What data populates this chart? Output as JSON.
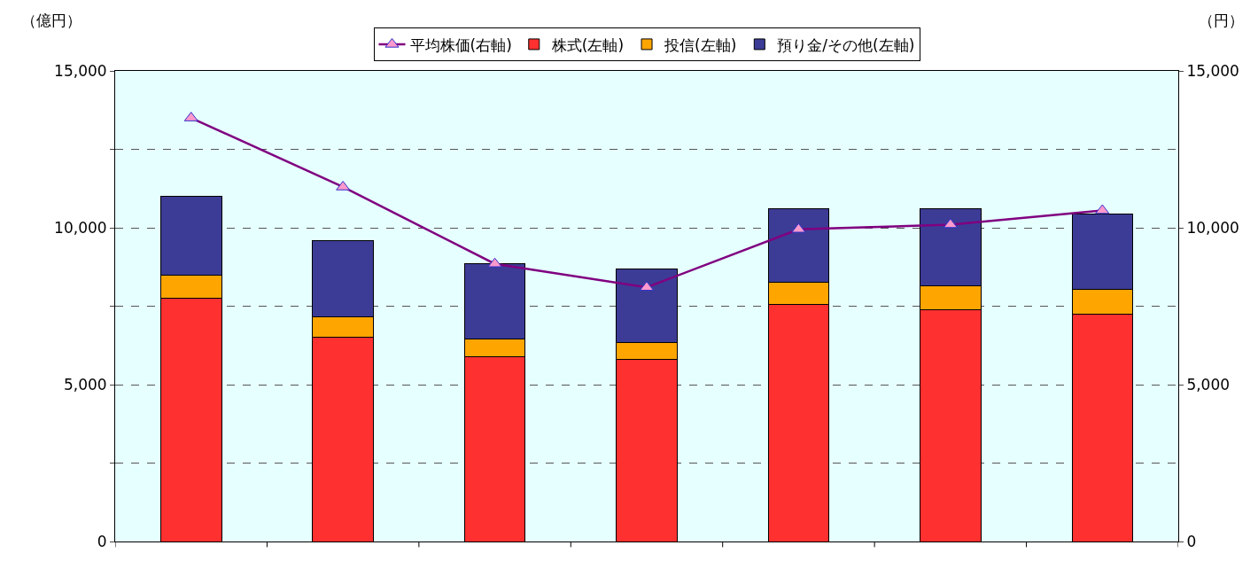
{
  "chart_data": {
    "type": "bar",
    "stacked": true,
    "ylabel": "（億円）",
    "y2label": "（円）",
    "categories": [
      null,
      null,
      null,
      null,
      null,
      null,
      null
    ],
    "series": [
      {
        "name": "株式(左軸)",
        "color": "#ff3030",
        "values": [
          7750,
          6500,
          5900,
          5800,
          7550,
          7400,
          7250
        ]
      },
      {
        "name": "投信(左軸)",
        "color": "#ffa500",
        "values": [
          750,
          650,
          550,
          550,
          700,
          750,
          800
        ]
      },
      {
        "name": "預り金/その他(左軸)",
        "color": "#3c3c96",
        "values": [
          2500,
          2450,
          2400,
          2350,
          2350,
          2450,
          2400
        ]
      },
      {
        "name": "平均株価(右軸)",
        "type": "line",
        "axis": "y2",
        "color": "#800080",
        "marker": "triangle",
        "values": [
          13500,
          11300,
          8850,
          8100,
          9950,
          10100,
          10550
        ]
      }
    ],
    "ylim": [
      0,
      15000
    ],
    "yticks": [
      {
        "value": 0,
        "label": "0"
      },
      {
        "value": 2500,
        "label": null
      },
      {
        "value": 5000,
        "label": "5,000"
      },
      {
        "value": 7500,
        "label": null
      },
      {
        "value": 10000,
        "label": "10,000"
      },
      {
        "value": 12500,
        "label": null
      },
      {
        "value": 15000,
        "label": "15,000"
      }
    ],
    "y2lim": [
      0,
      15000
    ],
    "y2ticks": [
      {
        "value": 0,
        "label": "0"
      },
      {
        "value": 5000,
        "label": "5,000"
      },
      {
        "value": 10000,
        "label": "10,000"
      },
      {
        "value": 15000,
        "label": "15,000"
      }
    ],
    "grid": "y",
    "legend": "top",
    "tick_labels": "y"
  }
}
